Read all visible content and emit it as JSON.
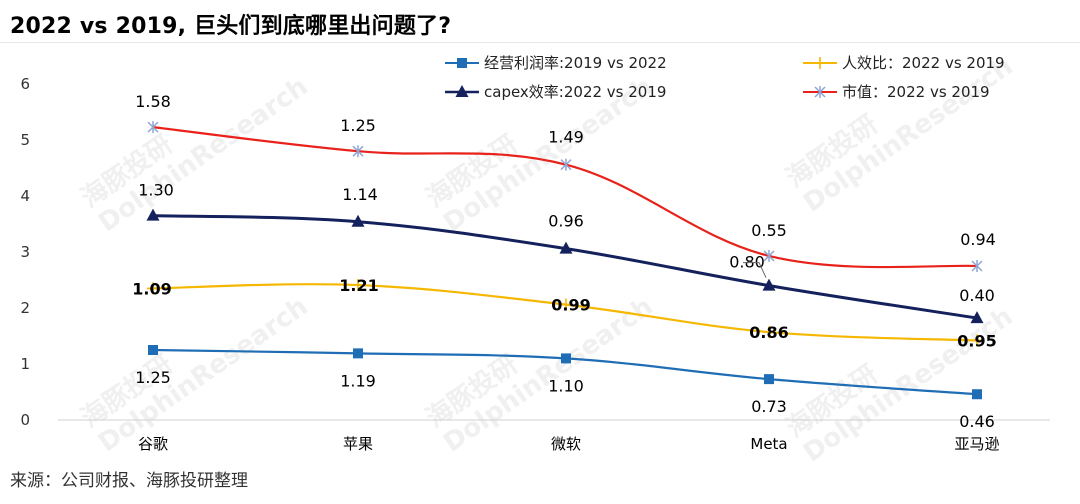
{
  "title": "2022 vs 2019, 巨头们到底哪里出问题了?",
  "source": "来源：公司财报、海豚投研整理",
  "watermark": {
    "cn": "海豚投研",
    "en": "DolphinResearch"
  },
  "chart_data": {
    "type": "line",
    "categories": [
      "谷歌",
      "苹果",
      "微软",
      "Meta",
      "亚马逊"
    ],
    "ylim": [
      0,
      6
    ],
    "yticks": [
      0,
      1,
      2,
      3,
      4,
      5,
      6
    ],
    "legend_position": "top",
    "grid": false,
    "series": [
      {
        "name": "经营利润率:2019 vs 2022",
        "color": "#1f6db5",
        "marker": "square",
        "values": [
          1.25,
          1.19,
          1.1,
          0.73,
          0.46
        ],
        "labels": [
          "1.25",
          "1.19",
          "1.10",
          "0.73",
          "0.46"
        ]
      },
      {
        "name": "人效比：2022 vs 2019",
        "color": "#f5b700",
        "marker": "plus",
        "values": [
          2.35,
          2.41,
          2.06,
          1.57,
          1.42
        ],
        "labels": [
          "1.09",
          "1.21",
          "0.99",
          "0.86",
          "0.95"
        ]
      },
      {
        "name": "capex效率:2022 vs 2019",
        "color": "#14215c",
        "marker": "triangle",
        "values": [
          3.65,
          3.54,
          3.06,
          2.4,
          1.82
        ],
        "labels": [
          "1.30",
          "1.14",
          "0.96",
          "0.80",
          "0.40"
        ]
      },
      {
        "name": "市值：2022 vs 2019",
        "color": "#e8221b",
        "marker": "asterisk",
        "values": [
          5.23,
          4.8,
          4.56,
          2.93,
          2.75
        ],
        "labels": [
          "1.58",
          "1.25",
          "1.49",
          "0.55",
          "0.94"
        ]
      }
    ]
  }
}
